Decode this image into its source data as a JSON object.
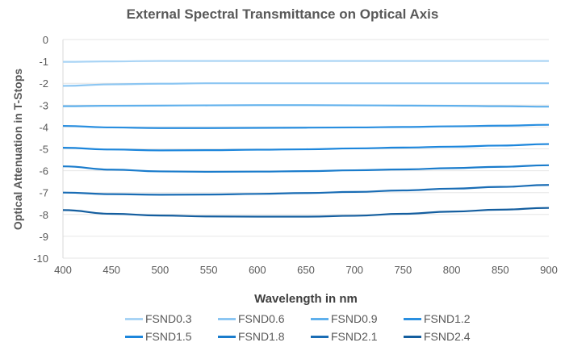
{
  "chart_data": {
    "type": "line",
    "title": "External Spectral Transmittance on Optical Axis",
    "xlabel": "Wavelength in nm",
    "ylabel": "Optical Attenuation in T-Stops",
    "xlim": [
      400,
      900
    ],
    "ylim": [
      -10,
      0
    ],
    "xticks": [
      400,
      450,
      500,
      550,
      600,
      650,
      700,
      750,
      800,
      850,
      900
    ],
    "yticks": [
      0,
      -1,
      -2,
      -3,
      -4,
      -5,
      -6,
      -7,
      -8,
      -9,
      -10
    ],
    "grid": true,
    "legend_position": "bottom",
    "x": [
      400,
      450,
      500,
      550,
      600,
      650,
      700,
      750,
      800,
      850,
      900
    ],
    "series": [
      {
        "name": "FSND0.3",
        "color": "#a9d4f5",
        "values": [
          -1.02,
          -1.0,
          -0.98,
          -0.98,
          -0.98,
          -0.98,
          -0.98,
          -0.98,
          -0.98,
          -0.98,
          -0.98
        ]
      },
      {
        "name": "FSND0.6",
        "color": "#8cc6f2",
        "values": [
          -2.12,
          -2.05,
          -2.02,
          -2.0,
          -2.0,
          -2.0,
          -2.0,
          -2.0,
          -2.0,
          -2.0,
          -2.0
        ]
      },
      {
        "name": "FSND0.9",
        "color": "#5fb0ec",
        "values": [
          -3.05,
          -3.03,
          -3.02,
          -3.01,
          -3.0,
          -3.0,
          -3.01,
          -3.02,
          -3.03,
          -3.05,
          -3.07
        ]
      },
      {
        "name": "FSND1.2",
        "color": "#2a8fe0",
        "values": [
          -3.95,
          -4.02,
          -4.05,
          -4.05,
          -4.04,
          -4.03,
          -4.02,
          -4.0,
          -3.97,
          -3.94,
          -3.9
        ]
      },
      {
        "name": "FSND1.5",
        "color": "#1c86dc",
        "values": [
          -4.95,
          -5.03,
          -5.07,
          -5.06,
          -5.04,
          -5.02,
          -4.98,
          -4.94,
          -4.9,
          -4.85,
          -4.78
        ]
      },
      {
        "name": "FSND1.8",
        "color": "#1a7ccc",
        "values": [
          -5.8,
          -5.95,
          -6.03,
          -6.05,
          -6.04,
          -6.02,
          -5.98,
          -5.94,
          -5.88,
          -5.82,
          -5.75
        ]
      },
      {
        "name": "FSND2.1",
        "color": "#1a6db5",
        "values": [
          -7.0,
          -7.07,
          -7.1,
          -7.09,
          -7.06,
          -7.02,
          -6.97,
          -6.9,
          -6.82,
          -6.74,
          -6.65
        ]
      },
      {
        "name": "FSND2.4",
        "color": "#145e9f",
        "values": [
          -7.8,
          -7.97,
          -8.05,
          -8.09,
          -8.1,
          -8.1,
          -8.06,
          -7.97,
          -7.87,
          -7.78,
          -7.7
        ]
      }
    ]
  }
}
